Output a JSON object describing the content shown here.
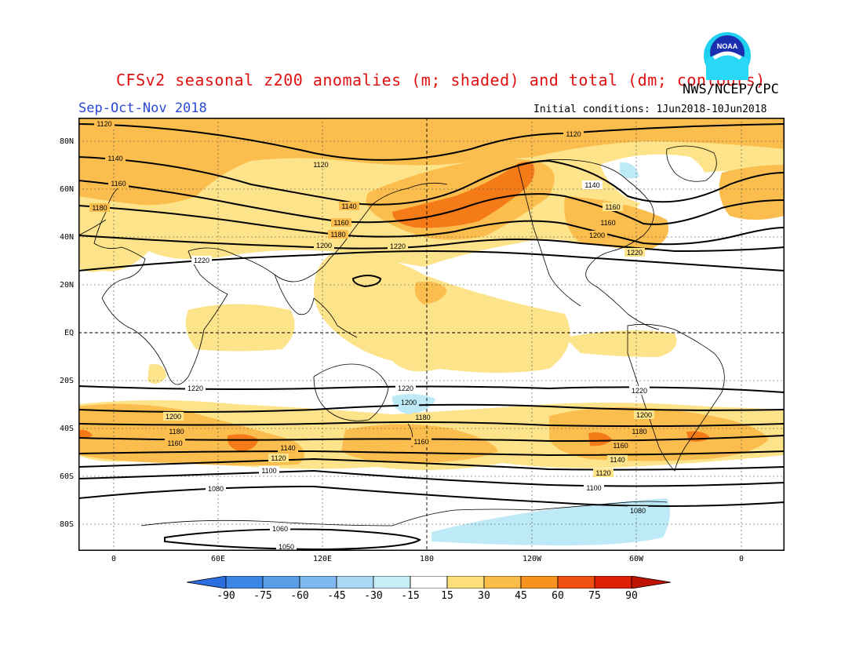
{
  "header": {
    "title": "CFSv2 seasonal z200 anomalies (m; shaded) and total (dm; contours)",
    "agency": "NWS/NCEP/CPC",
    "season": "Sep-Oct-Nov 2018",
    "initial_conditions": "Initial conditions: 1Jun2018-10Jun2018",
    "logo_text": "NOAA"
  },
  "axes": {
    "lat_labels": [
      "80N",
      "60N",
      "40N",
      "20N",
      "EQ",
      "20S",
      "40S",
      "60S",
      "80S"
    ],
    "lon_labels": [
      "0",
      "60E",
      "120E",
      "180",
      "120W",
      "60W",
      "0"
    ]
  },
  "contours": [
    {
      "label": "1120"
    },
    {
      "label": "1140"
    },
    {
      "label": "1160"
    },
    {
      "label": "1180"
    },
    {
      "label": "1200"
    },
    {
      "label": "1220"
    },
    {
      "label": "1080"
    },
    {
      "label": "1100"
    },
    {
      "label": "1060"
    },
    {
      "label": "1050"
    }
  ],
  "colorbar": {
    "labels": [
      "-90",
      "-75",
      "-60",
      "-45",
      "-30",
      "-15",
      "15",
      "30",
      "45",
      "60",
      "75",
      "90"
    ],
    "colors": [
      "#2a6ee0",
      "#3c86e6",
      "#5a9ee8",
      "#7eb8ee",
      "#a8d8f4",
      "#c8eef8",
      "#ffffff",
      "#fde07a",
      "#fbbd4a",
      "#f8921f",
      "#f05010",
      "#e02006",
      "#c01200"
    ]
  },
  "chart_data": {
    "type": "heatmap",
    "title": "CFSv2 seasonal z200 anomalies (m; shaded) and total (dm; contours)",
    "xlabel": "",
    "ylabel": "",
    "x_ticks": [
      "0",
      "60E",
      "120E",
      "180",
      "120W",
      "60W",
      "0"
    ],
    "y_ticks": [
      "80N",
      "60N",
      "40N",
      "20N",
      "EQ",
      "20S",
      "40S",
      "60S",
      "80S"
    ],
    "contour_levels_dm": [
      1050,
      1060,
      1080,
      1100,
      1120,
      1140,
      1160,
      1180,
      1200,
      1220
    ],
    "shading_levels_m": [
      -90,
      -75,
      -60,
      -45,
      -30,
      -15,
      15,
      30,
      45,
      60,
      75,
      90
    ],
    "grid": true
  }
}
